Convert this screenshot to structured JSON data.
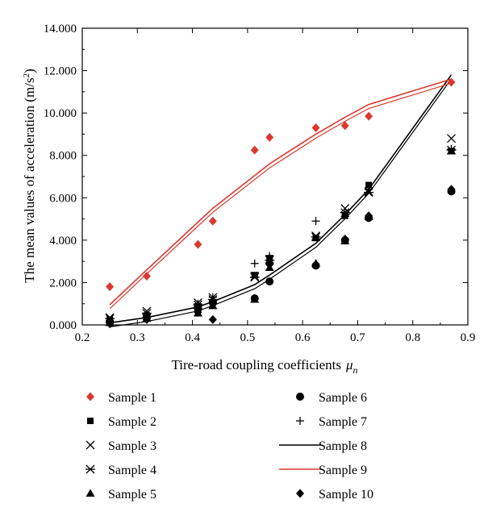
{
  "chart_data": {
    "type": "scatter",
    "title": "",
    "xlabel": "Tire-road coupling coefficients",
    "xlabel_symbol": "μ",
    "xlabel_subscript": "n",
    "ylabel": "The mean values of acceleration (m/s",
    "ylabel_sup": "2",
    "ylabel_close": ")",
    "xlim": [
      0.2,
      0.9
    ],
    "ylim": [
      0,
      14
    ],
    "xticks": [
      {
        "v": 0.2,
        "label": "0.2"
      },
      {
        "v": 0.3,
        "label": "0.3"
      },
      {
        "v": 0.4,
        "label": "0.4"
      },
      {
        "v": 0.5,
        "label": "0.5"
      },
      {
        "v": 0.6,
        "label": "0.6"
      },
      {
        "v": 0.7,
        "label": "0.7"
      },
      {
        "v": 0.8,
        "label": "0.8"
      },
      {
        "v": 0.9,
        "label": "0.9"
      }
    ],
    "yticks": [
      {
        "v": 0,
        "label": "0.000"
      },
      {
        "v": 2,
        "label": "2.000"
      },
      {
        "v": 4,
        "label": "4.000"
      },
      {
        "v": 6,
        "label": "6.000"
      },
      {
        "v": 8,
        "label": "8.000"
      },
      {
        "v": 10,
        "label": "10.000"
      },
      {
        "v": 12,
        "label": "12.000"
      },
      {
        "v": 14,
        "label": "14.000"
      }
    ],
    "x": [
      0.25,
      0.317,
      0.41,
      0.437,
      0.513,
      0.54,
      0.624,
      0.677,
      0.72,
      0.87
    ],
    "grid": false,
    "legend_position": "bottom",
    "colors": {
      "red": "#d93a2e",
      "black": "#000000"
    },
    "series": [
      {
        "name": "Sample 1",
        "marker": "diamond",
        "color": "#d93a2e",
        "kind": "points",
        "values": [
          1.8,
          2.3,
          3.8,
          4.9,
          8.25,
          8.85,
          9.3,
          9.4,
          9.85,
          11.45
        ]
      },
      {
        "name": "Sample 2",
        "marker": "square",
        "color": "#000000",
        "kind": "points",
        "values": [
          0.25,
          0.45,
          0.85,
          1.05,
          2.35,
          3.15,
          4.1,
          5.15,
          6.6,
          8.2
        ]
      },
      {
        "name": "Sample 3",
        "marker": "x",
        "color": "#000000",
        "kind": "points",
        "values": [
          0.35,
          0.65,
          1.05,
          1.3,
          2.3,
          3.1,
          4.2,
          5.5,
          6.3,
          8.8
        ]
      },
      {
        "name": "Sample 4",
        "marker": "asterisk",
        "color": "#000000",
        "kind": "points",
        "values": [
          0.3,
          0.55,
          0.95,
          1.2,
          2.25,
          3.05,
          4.15,
          5.3,
          6.25,
          8.25
        ]
      },
      {
        "name": "Sample 5",
        "marker": "triangle",
        "color": "#000000",
        "kind": "points",
        "values": [
          0.1,
          0.3,
          0.55,
          0.9,
          1.2,
          2.7,
          2.9,
          3.95,
          5.1,
          8.2
        ]
      },
      {
        "name": "Sample 6",
        "marker": "circle",
        "color": "#000000",
        "kind": "points",
        "values": [
          0.15,
          0.35,
          0.75,
          1.05,
          1.25,
          2.05,
          2.8,
          4.0,
          5.05,
          6.3
        ]
      },
      {
        "name": "Sample 7",
        "marker": "plus",
        "color": "#000000",
        "kind": "points",
        "values": [
          0.2,
          0.5,
          1.0,
          1.3,
          2.9,
          3.25,
          4.9,
          5.3,
          6.4,
          8.3
        ]
      },
      {
        "name": "Sample 8",
        "marker": "line",
        "color": "#000000",
        "kind": "fit",
        "values": [
          0.1,
          0.35,
          0.85,
          1.1,
          1.9,
          2.35,
          3.85,
          5.2,
          6.4,
          11.8
        ]
      },
      {
        "name": "Sample 9",
        "marker": "line",
        "color": "#d93a2e",
        "kind": "fit",
        "values": [
          0.95,
          2.6,
          4.85,
          5.5,
          7.05,
          7.6,
          9.0,
          9.8,
          10.4,
          11.6
        ]
      },
      {
        "name": "Sample 10",
        "marker": "diamond",
        "color": "#000000",
        "kind": "points",
        "values": [
          0.05,
          0.25,
          0.6,
          0.25,
          1.25,
          2.85,
          2.85,
          4.05,
          5.15,
          6.4
        ]
      }
    ],
    "legend": {
      "left": [
        "Sample 1",
        "Sample 2",
        "Sample 3",
        "Sample 4",
        "Sample 5"
      ],
      "right": [
        "Sample 6",
        "Sample 7",
        "Sample 8",
        "Sample 9",
        "Sample 10"
      ]
    }
  }
}
